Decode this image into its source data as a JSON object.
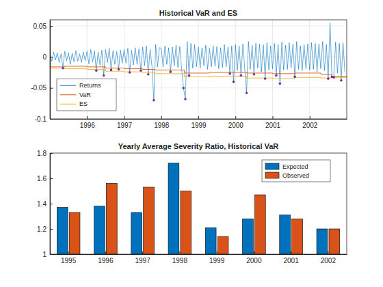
{
  "chart_data": [
    {
      "type": "line",
      "title": "Historical VaR and ES",
      "xlim": [
        1995,
        2003
      ],
      "xticks": [
        1996,
        1997,
        1998,
        1999,
        2000,
        2001,
        2002
      ],
      "ylim": [
        -0.1,
        0.06
      ],
      "yticks": [
        -0.1,
        -0.05,
        0,
        0.05
      ],
      "grid": true,
      "legend": "southwest",
      "series": [
        {
          "name": "Returns",
          "color": "#0072BD",
          "x": [
            1995,
            1995.05,
            1995.1,
            1995.15,
            1995.2,
            1995.25,
            1995.3,
            1995.35,
            1995.4,
            1995.45,
            1995.5,
            1995.55,
            1995.6,
            1995.65,
            1995.7,
            1995.75,
            1995.8,
            1995.85,
            1995.9,
            1995.95,
            1996,
            1996.05,
            1996.1,
            1996.15,
            1996.2,
            1996.25,
            1996.3,
            1996.35,
            1996.4,
            1996.45,
            1996.5,
            1996.55,
            1996.6,
            1996.65,
            1996.7,
            1996.75,
            1996.8,
            1996.85,
            1996.9,
            1996.95,
            1997,
            1997.05,
            1997.1,
            1997.15,
            1997.2,
            1997.25,
            1997.3,
            1997.35,
            1997.4,
            1997.45,
            1997.5,
            1997.55,
            1997.6,
            1997.65,
            1997.7,
            1997.75,
            1997.8,
            1997.85,
            1997.9,
            1997.95,
            1998,
            1998.05,
            1998.1,
            1998.15,
            1998.2,
            1998.25,
            1998.3,
            1998.35,
            1998.4,
            1998.45,
            1998.5,
            1998.55,
            1998.6,
            1998.65,
            1998.7,
            1998.75,
            1998.8,
            1998.85,
            1998.9,
            1998.95,
            1999,
            1999.05,
            1999.1,
            1999.15,
            1999.2,
            1999.25,
            1999.3,
            1999.35,
            1999.4,
            1999.45,
            1999.5,
            1999.55,
            1999.6,
            1999.65,
            1999.7,
            1999.75,
            1999.8,
            1999.85,
            1999.9,
            1999.95,
            2000,
            2000.05,
            2000.1,
            2000.15,
            2000.2,
            2000.25,
            2000.3,
            2000.35,
            2000.4,
            2000.45,
            2000.5,
            2000.55,
            2000.6,
            2000.65,
            2000.7,
            2000.75,
            2000.8,
            2000.85,
            2000.9,
            2000.95,
            2001,
            2001.05,
            2001.1,
            2001.15,
            2001.2,
            2001.25,
            2001.3,
            2001.35,
            2001.4,
            2001.45,
            2001.5,
            2001.55,
            2001.6,
            2001.65,
            2001.7,
            2001.75,
            2001.8,
            2001.85,
            2001.9,
            2001.95,
            2002,
            2002.05,
            2002.1,
            2002.15,
            2002.2,
            2002.25,
            2002.3,
            2002.35,
            2002.4,
            2002.45,
            2002.5,
            2002.55,
            2002.6,
            2002.65,
            2002.7,
            2002.75,
            2002.8,
            2002.85,
            2002.9,
            2002.95
          ],
          "values": [
            0.006,
            -0.007,
            0.008,
            -0.005,
            0.007,
            -0.009,
            0.005,
            -0.018,
            0.009,
            -0.006,
            0.007,
            -0.012,
            0.006,
            -0.008,
            0.01,
            -0.007,
            0.005,
            -0.009,
            0.008,
            -0.006,
            0.009,
            -0.011,
            0.012,
            -0.008,
            0.01,
            -0.022,
            0.008,
            -0.013,
            0.011,
            -0.03,
            0.012,
            -0.009,
            0.014,
            -0.021,
            0.01,
            -0.012,
            0.009,
            -0.02,
            0.011,
            -0.01,
            0.012,
            -0.01,
            0.014,
            -0.025,
            0.011,
            -0.013,
            0.015,
            -0.012,
            0.013,
            -0.022,
            0.016,
            -0.014,
            0.018,
            -0.028,
            0.012,
            -0.015,
            -0.07,
            0.02,
            -0.016,
            0.015,
            0.014,
            -0.016,
            0.018,
            -0.012,
            0.015,
            -0.024,
            0.016,
            -0.014,
            0.019,
            -0.017,
            0.017,
            -0.02,
            -0.05,
            -0.068,
            0.025,
            -0.03,
            0.022,
            -0.018,
            0.02,
            -0.016,
            0.016,
            -0.018,
            0.015,
            -0.014,
            0.019,
            -0.02,
            0.014,
            -0.016,
            0.018,
            -0.015,
            0.017,
            -0.019,
            0.015,
            -0.017,
            0.02,
            -0.016,
            0.016,
            -0.027,
            0.018,
            -0.04,
            0.02,
            -0.022,
            0.018,
            -0.03,
            0.021,
            -0.019,
            -0.058,
            0.025,
            -0.02,
            0.019,
            -0.028,
            0.022,
            -0.018,
            0.021,
            -0.024,
            0.02,
            -0.035,
            0.023,
            -0.021,
            0.018,
            -0.019,
            0.022,
            -0.03,
            0.02,
            -0.043,
            0.024,
            -0.021,
            0.019,
            -0.02,
            0.023,
            -0.018,
            0.021,
            -0.032,
            0.025,
            -0.02,
            0.018,
            -0.022,
            0.02,
            -0.019,
            0.021,
            -0.021,
            0.023,
            -0.02,
            0.022,
            -0.024,
            0.021,
            -0.019,
            0.025,
            -0.022,
            0.02,
            -0.035,
            0.055,
            -0.032,
            -0.033,
            0.024,
            -0.026,
            0.022,
            -0.038,
            0.023,
            -0.025
          ]
        },
        {
          "name": "VaR",
          "color": "#D95319",
          "x": [
            1995,
            1995.4,
            1995.4,
            1996,
            1996,
            1996.5,
            1996.5,
            1997,
            1997,
            1997.5,
            1997.5,
            1997.82,
            1997.82,
            1998.62,
            1998.62,
            1999.3,
            1999.3,
            2000.3,
            2000.3,
            2001,
            2001,
            2001.6,
            2001.6,
            2002.3,
            2002.3,
            2002.6,
            2002.6,
            2003
          ],
          "values": [
            -0.016,
            -0.016,
            -0.015,
            -0.015,
            -0.016,
            -0.016,
            -0.018,
            -0.018,
            -0.019,
            -0.019,
            -0.02,
            -0.02,
            -0.021,
            -0.021,
            -0.026,
            -0.026,
            -0.025,
            -0.025,
            -0.026,
            -0.026,
            -0.027,
            -0.027,
            -0.026,
            -0.026,
            -0.028,
            -0.028,
            -0.031,
            -0.031
          ]
        },
        {
          "name": "ES",
          "color": "#EDB120",
          "x": [
            1995,
            1995.4,
            1995.4,
            1996,
            1996,
            1996.5,
            1996.5,
            1997,
            1997,
            1997.5,
            1997.5,
            1997.82,
            1997.82,
            1998.62,
            1998.62,
            1999.3,
            1999.3,
            2000.3,
            2000.3,
            2001,
            2001,
            2001.6,
            2001.6,
            2002.3,
            2002.3,
            2002.6,
            2002.6,
            2003
          ],
          "values": [
            -0.018,
            -0.018,
            -0.019,
            -0.019,
            -0.02,
            -0.02,
            -0.023,
            -0.023,
            -0.024,
            -0.024,
            -0.025,
            -0.025,
            -0.027,
            -0.027,
            -0.032,
            -0.032,
            -0.031,
            -0.031,
            -0.034,
            -0.034,
            -0.035,
            -0.035,
            -0.033,
            -0.033,
            -0.034,
            -0.034,
            -0.033,
            -0.033
          ]
        },
        {
          "color": "#7E2F8E",
          "marker": "point",
          "x": [
            1995.35,
            1996.25,
            1996.45,
            1996.65,
            1996.85,
            1997.15,
            1997.45,
            1997.65,
            1997.8,
            1998.25,
            1998.6,
            1998.65,
            1998.75,
            1999.85,
            1999.95,
            2000.15,
            2000.3,
            2000.5,
            2000.8,
            2001.1,
            2001.2,
            2001.6,
            2002.5,
            2002.6,
            2002.65,
            2002.85
          ],
          "values": [
            -0.018,
            -0.022,
            -0.03,
            -0.021,
            -0.02,
            -0.025,
            -0.022,
            -0.028,
            -0.07,
            -0.024,
            -0.05,
            -0.068,
            -0.03,
            -0.027,
            -0.04,
            -0.03,
            -0.058,
            -0.028,
            -0.035,
            -0.03,
            -0.043,
            -0.032,
            -0.035,
            -0.032,
            -0.033,
            -0.038
          ]
        }
      ]
    },
    {
      "type": "bar",
      "title": "Yearly Average Severity Ratio, Historical VaR",
      "categories": [
        "1995",
        "1996",
        "1997",
        "1998",
        "1999",
        "2000",
        "2001",
        "2002"
      ],
      "ylim": [
        1,
        1.8
      ],
      "yticks": [
        1,
        1.2,
        1.4,
        1.6,
        1.8
      ],
      "grid": false,
      "legend": "northeast",
      "series": [
        {
          "name": "Expected",
          "color": "#0072BD",
          "values": [
            1.37,
            1.38,
            1.33,
            1.72,
            1.21,
            1.28,
            1.31,
            1.2
          ]
        },
        {
          "name": "Observed",
          "color": "#D95319",
          "values": [
            1.33,
            1.56,
            1.53,
            1.5,
            1.14,
            1.47,
            1.28,
            1.2
          ]
        }
      ]
    }
  ]
}
